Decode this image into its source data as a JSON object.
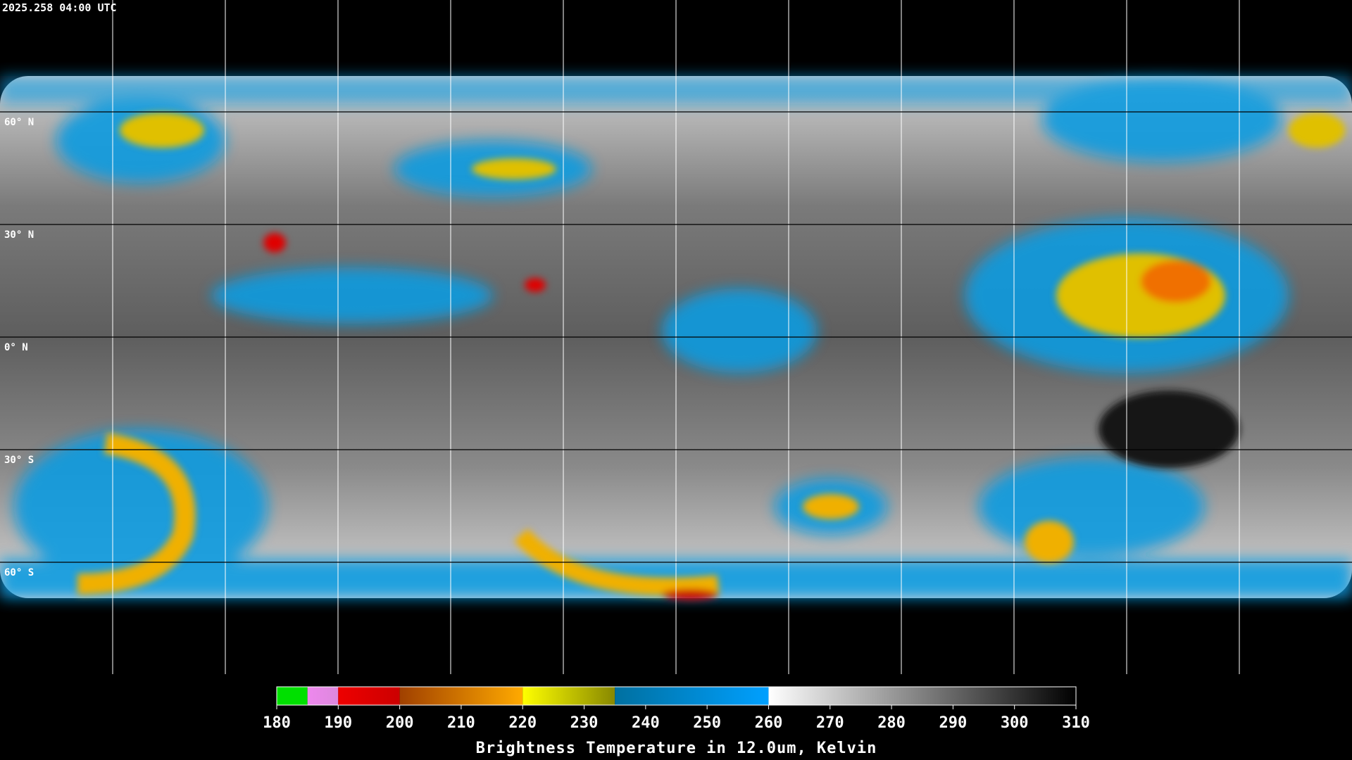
{
  "header": {
    "timestamp": "2025.258 04:00 UTC"
  },
  "latitudes": [
    {
      "value": 60,
      "label": "60° N"
    },
    {
      "value": 30,
      "label": "30° N"
    },
    {
      "value": 0,
      "label": "0° N"
    },
    {
      "value": -30,
      "label": "30° S"
    },
    {
      "value": -60,
      "label": "60° S"
    }
  ],
  "colorbar": {
    "title": "Brightness Temperature in 12.0um, Kelvin",
    "range": [
      180,
      310
    ],
    "ticks": [
      180,
      190,
      200,
      210,
      220,
      230,
      240,
      250,
      260,
      270,
      280,
      290,
      300,
      310
    ],
    "segments": [
      {
        "from": 180,
        "to": 185,
        "colors": [
          "#00e000",
          "#00e000"
        ]
      },
      {
        "from": 185,
        "to": 190,
        "colors": [
          "#ee88ee",
          "#dd88dd"
        ]
      },
      {
        "from": 190,
        "to": 200,
        "colors": [
          "#ee0000",
          "#cc0000"
        ]
      },
      {
        "from": 200,
        "to": 220,
        "colors": [
          "#a04000",
          "#ffaa00"
        ]
      },
      {
        "from": 220,
        "to": 235,
        "colors": [
          "#ffff00",
          "#888800"
        ]
      },
      {
        "from": 235,
        "to": 260,
        "colors": [
          "#0070a0",
          "#00a0ff"
        ]
      },
      {
        "from": 260,
        "to": 310,
        "colors": [
          "#ffffff",
          "#000000"
        ]
      }
    ]
  }
}
